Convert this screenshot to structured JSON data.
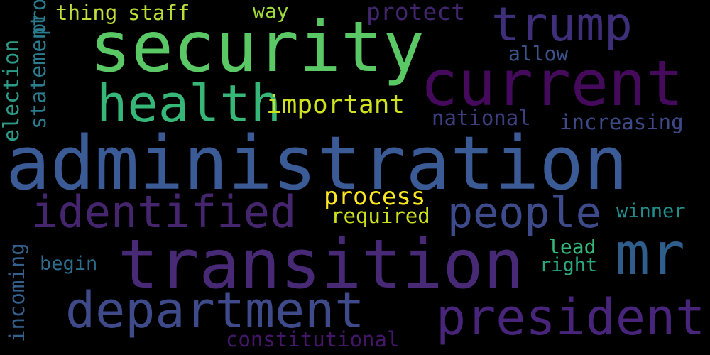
{
  "words": [
    {
      "text": "administration",
      "color": "#3b5b97"
    },
    {
      "text": "transition",
      "color": "#482976"
    },
    {
      "text": "security",
      "color": "#59c865"
    },
    {
      "text": "current",
      "color": "#450a5c"
    },
    {
      "text": "health",
      "color": "#36b677"
    },
    {
      "text": "trump",
      "color": "#3f2e7a"
    },
    {
      "text": "department",
      "color": "#3e4a89"
    },
    {
      "text": "president",
      "color": "#48247a"
    },
    {
      "text": "identified",
      "color": "#46256f"
    },
    {
      "text": "people",
      "color": "#3e4b8a"
    },
    {
      "text": "mr",
      "color": "#2f5e8c"
    },
    {
      "text": "important",
      "color": "#cfe11f"
    },
    {
      "text": "process",
      "color": "#fbe723"
    },
    {
      "text": "required",
      "color": "#cfe11c"
    },
    {
      "text": "thing",
      "color": "#c1de39"
    },
    {
      "text": "staff",
      "color": "#b8dd37"
    },
    {
      "text": "way",
      "color": "#9fd939"
    },
    {
      "text": "protect",
      "color": "#41256d"
    },
    {
      "text": "allow",
      "color": "#3b538a"
    },
    {
      "text": "national",
      "color": "#3e3f80"
    },
    {
      "text": "increasing",
      "color": "#3e4988"
    },
    {
      "text": "winner",
      "color": "#21908d"
    },
    {
      "text": "lead",
      "color": "#35b779"
    },
    {
      "text": "right",
      "color": "#2ba880"
    },
    {
      "text": "begin",
      "color": "#2d6e8e"
    },
    {
      "text": "constitutional",
      "color": "#44166a"
    },
    {
      "text": "election",
      "color": "#2c9b88"
    },
    {
      "text": "statement",
      "color": "#2b7c8e"
    },
    {
      "text": "protect",
      "color": "#2a7b8e"
    },
    {
      "text": "incoming",
      "color": "#34608d"
    }
  ]
}
